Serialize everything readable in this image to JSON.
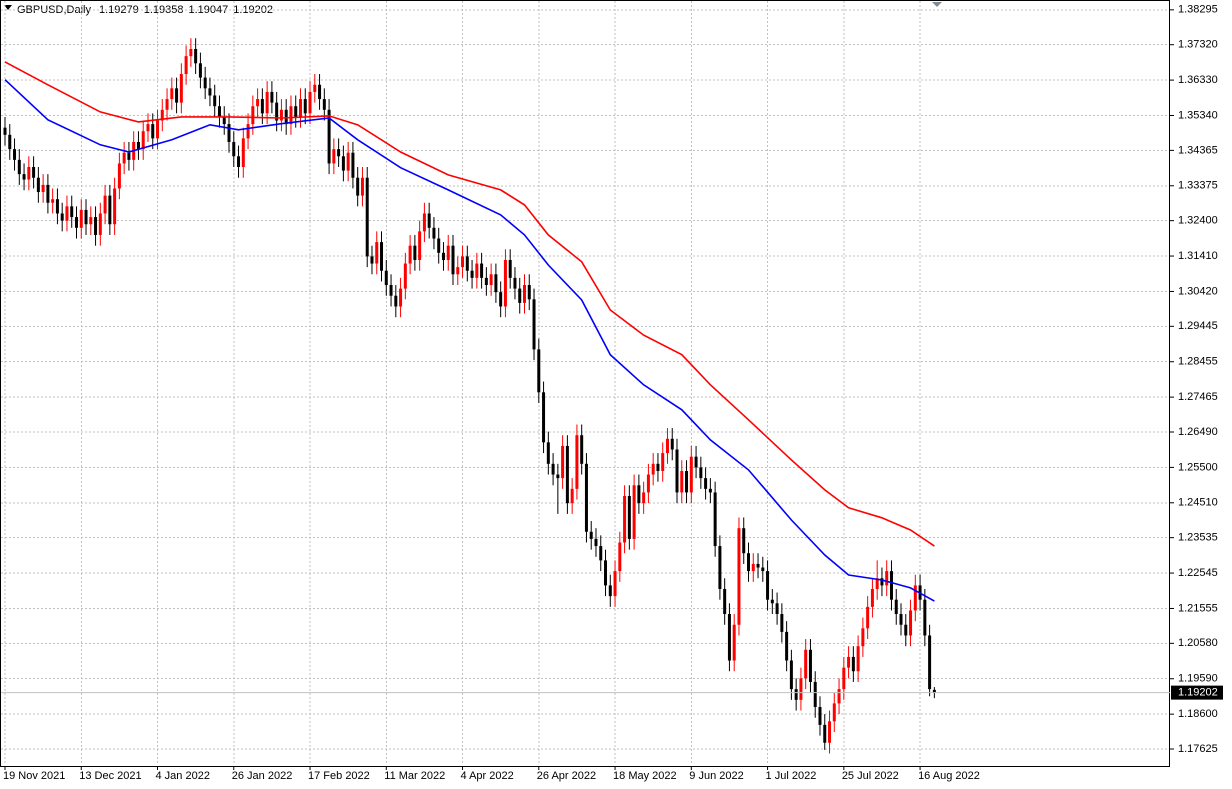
{
  "chart_data": {
    "type": "candlestick",
    "title": "GBPUSD,Daily",
    "up_color": "#ff0000",
    "down_color": "#000000",
    "grid": true,
    "ylim": [
      1.1715,
      1.3857
    ],
    "yticks": [
      1.38295,
      {
        "value": 1.3732,
        "label": "1.37320"
      },
      {
        "value": 1.3633,
        "label": "1.36330"
      },
      {
        "value": 1.3534,
        "label": "1.35340"
      },
      1.34365,
      1.33375,
      {
        "value": 1.324,
        "label": "1.32400"
      },
      {
        "value": 1.3141,
        "label": "1.31410"
      },
      {
        "value": 1.3042,
        "label": "1.30420"
      },
      1.29445,
      1.28455,
      1.27465,
      {
        "value": 1.2649,
        "label": "1.26490"
      },
      {
        "value": 1.255,
        "label": "1.25500"
      },
      {
        "value": 1.2451,
        "label": "1.24510"
      },
      1.23535,
      1.22545,
      1.21555,
      {
        "value": 1.2058,
        "label": "1.20580"
      },
      {
        "value": 1.1959,
        "label": "1.19590"
      },
      {
        "value": 1.186,
        "label": "1.18600"
      },
      1.17625
    ],
    "xticks": [
      {
        "value": 0,
        "label": "19 Nov 2021"
      },
      {
        "value": 16,
        "label": "13 Dec 2021"
      },
      {
        "value": 32,
        "label": "4 Jan 2022"
      },
      {
        "value": 48,
        "label": "26 Jan 2022"
      },
      {
        "value": 64,
        "label": "17 Feb 2022"
      },
      {
        "value": 80,
        "label": "11 Mar 2022"
      },
      {
        "value": 96,
        "label": "4 Apr 2022"
      },
      {
        "value": 112,
        "label": "26 Apr 2022"
      },
      {
        "value": 128,
        "label": "18 May 2022"
      },
      {
        "value": 144,
        "label": "9 Jun 2022"
      },
      {
        "value": 160,
        "label": "1 Jul 2022"
      },
      {
        "value": 176,
        "label": "25 Jul 2022"
      },
      {
        "value": 192,
        "label": "16 Aug 2022"
      }
    ],
    "open": [
      1.35,
      1.348,
      1.344,
      1.341,
      1.337,
      1.3355,
      1.339,
      1.336,
      1.332,
      1.334,
      1.329,
      1.33,
      1.326,
      1.324,
      1.328,
      1.325,
      1.322,
      1.327,
      1.323,
      1.325,
      1.32,
      1.326,
      1.331,
      1.323,
      1.333,
      1.34,
      1.343,
      1.341,
      1.346,
      1.344,
      1.349,
      1.351,
      1.347,
      1.352,
      1.355,
      1.358,
      1.361,
      1.357,
      1.365,
      1.37,
      1.372,
      1.368,
      1.364,
      1.361,
      1.359,
      1.356,
      1.353,
      1.351,
      1.346,
      1.342,
      1.339,
      1.347,
      1.351,
      1.356,
      1.358,
      1.354,
      1.36,
      1.357,
      1.352,
      1.355,
      1.351,
      1.356,
      1.353,
      1.358,
      1.354,
      1.36,
      1.362,
      1.358,
      1.355,
      1.34,
      1.344,
      1.342,
      1.338,
      1.343,
      1.336,
      1.331,
      1.336,
      1.314,
      1.312,
      1.318,
      1.31,
      1.306,
      1.303,
      1.3,
      1.305,
      1.312,
      1.317,
      1.313,
      1.321,
      1.326,
      1.322,
      1.319,
      1.315,
      1.313,
      1.317,
      1.309,
      1.311,
      1.314,
      1.31,
      1.308,
      1.312,
      1.308,
      1.306,
      1.309,
      1.304,
      1.3,
      1.313,
      1.308,
      1.305,
      1.301,
      1.306,
      1.302,
      1.288,
      1.276,
      1.262,
      1.256,
      1.253,
      1.252,
      1.261,
      1.245,
      1.249,
      1.264,
      1.256,
      1.237,
      1.235,
      1.233,
      1.229,
      1.222,
      1.219,
      1.226,
      1.234,
      1.247,
      1.235,
      1.25,
      1.245,
      1.248,
      1.253,
      1.256,
      1.254,
      1.259,
      1.263,
      1.26,
      1.248,
      1.254,
      1.248,
      1.258,
      1.255,
      1.252,
      1.249,
      1.248,
      1.233,
      1.221,
      1.214,
      1.201,
      1.211,
      1.238,
      1.231,
      1.226,
      1.228,
      1.227,
      1.226,
      1.218,
      1.217,
      1.214,
      1.209,
      1.201,
      1.193,
      1.19,
      1.196,
      1.204,
      1.195,
      1.188,
      1.183,
      1.178,
      1.184,
      1.189,
      1.193,
      1.199,
      1.202,
      1.198,
      1.205,
      1.21,
      1.216,
      1.221,
      1.224,
      1.222,
      1.226,
      1.218,
      1.214,
      1.211,
      1.208,
      1.215,
      1.222,
      1.218,
      1.208,
      1.19279
    ],
    "high": [
      1.353,
      1.351,
      1.347,
      1.344,
      1.34,
      1.342,
      1.342,
      1.339,
      1.337,
      1.337,
      1.333,
      1.333,
      1.329,
      1.331,
      1.331,
      1.328,
      1.33,
      1.33,
      1.328,
      1.328,
      1.329,
      1.334,
      1.334,
      1.336,
      1.343,
      1.346,
      1.346,
      1.349,
      1.349,
      1.352,
      1.354,
      1.354,
      1.355,
      1.358,
      1.361,
      1.364,
      1.364,
      1.368,
      1.373,
      1.375,
      1.375,
      1.371,
      1.367,
      1.364,
      1.362,
      1.359,
      1.356,
      1.354,
      1.349,
      1.345,
      1.35,
      1.354,
      1.359,
      1.361,
      1.361,
      1.363,
      1.363,
      1.36,
      1.358,
      1.358,
      1.359,
      1.359,
      1.361,
      1.361,
      1.363,
      1.365,
      1.365,
      1.361,
      1.358,
      1.347,
      1.347,
      1.345,
      1.346,
      1.346,
      1.339,
      1.339,
      1.339,
      1.317,
      1.321,
      1.321,
      1.313,
      1.309,
      1.306,
      1.308,
      1.315,
      1.32,
      1.32,
      1.324,
      1.329,
      1.329,
      1.325,
      1.322,
      1.318,
      1.32,
      1.32,
      1.314,
      1.317,
      1.317,
      1.313,
      1.315,
      1.315,
      1.311,
      1.312,
      1.312,
      1.307,
      1.316,
      1.316,
      1.311,
      1.308,
      1.309,
      1.309,
      1.305,
      1.291,
      1.279,
      1.265,
      1.259,
      1.256,
      1.264,
      1.264,
      1.252,
      1.267,
      1.267,
      1.259,
      1.24,
      1.238,
      1.236,
      1.232,
      1.225,
      1.229,
      1.237,
      1.25,
      1.25,
      1.253,
      1.253,
      1.251,
      1.256,
      1.259,
      1.259,
      1.262,
      1.266,
      1.266,
      1.263,
      1.257,
      1.257,
      1.261,
      1.261,
      1.258,
      1.255,
      1.252,
      1.251,
      1.236,
      1.224,
      1.217,
      1.214,
      1.241,
      1.241,
      1.234,
      1.231,
      1.231,
      1.23,
      1.229,
      1.221,
      1.22,
      1.217,
      1.212,
      1.204,
      1.196,
      1.199,
      1.207,
      1.207,
      1.198,
      1.191,
      1.186,
      1.187,
      1.192,
      1.196,
      1.202,
      1.205,
      1.205,
      1.208,
      1.213,
      1.219,
      1.224,
      1.229,
      1.227,
      1.229,
      1.229,
      1.221,
      1.217,
      1.214,
      1.218,
      1.225,
      1.225,
      1.221,
      1.211,
      1.19358
    ],
    "low": [
      1.345,
      1.341,
      1.338,
      1.334,
      1.3325,
      1.3325,
      1.333,
      1.329,
      1.329,
      1.326,
      1.326,
      1.323,
      1.321,
      1.321,
      1.322,
      1.319,
      1.319,
      1.32,
      1.32,
      1.317,
      1.317,
      1.323,
      1.32,
      1.32,
      1.33,
      1.337,
      1.338,
      1.338,
      1.341,
      1.341,
      1.346,
      1.344,
      1.344,
      1.349,
      1.352,
      1.355,
      1.354,
      1.354,
      1.362,
      1.367,
      1.365,
      1.361,
      1.358,
      1.356,
      1.353,
      1.35,
      1.348,
      1.343,
      1.339,
      1.336,
      1.336,
      1.344,
      1.348,
      1.353,
      1.351,
      1.351,
      1.354,
      1.349,
      1.349,
      1.348,
      1.348,
      1.35,
      1.35,
      1.351,
      1.351,
      1.357,
      1.355,
      1.352,
      1.337,
      1.337,
      1.339,
      1.335,
      1.335,
      1.333,
      1.328,
      1.328,
      1.311,
      1.309,
      1.309,
      1.307,
      1.303,
      1.3,
      1.297,
      1.297,
      1.302,
      1.309,
      1.31,
      1.31,
      1.318,
      1.319,
      1.316,
      1.312,
      1.31,
      1.31,
      1.306,
      1.306,
      1.308,
      1.307,
      1.305,
      1.305,
      1.305,
      1.303,
      1.303,
      1.301,
      1.297,
      1.297,
      1.305,
      1.302,
      1.298,
      1.298,
      1.299,
      1.285,
      1.273,
      1.259,
      1.253,
      1.25,
      1.242,
      1.249,
      1.242,
      1.242,
      1.246,
      1.253,
      1.234,
      1.232,
      1.23,
      1.226,
      1.219,
      1.216,
      1.216,
      1.223,
      1.231,
      1.232,
      1.232,
      1.242,
      1.242,
      1.245,
      1.25,
      1.251,
      1.251,
      1.256,
      1.257,
      1.245,
      1.245,
      1.245,
      1.245,
      1.252,
      1.249,
      1.246,
      1.245,
      1.23,
      1.218,
      1.211,
      1.198,
      1.198,
      1.208,
      1.228,
      1.223,
      1.223,
      1.224,
      1.223,
      1.215,
      1.214,
      1.211,
      1.206,
      1.198,
      1.19,
      1.187,
      1.187,
      1.193,
      1.192,
      1.185,
      1.18,
      1.176,
      1.175,
      1.181,
      1.186,
      1.19,
      1.196,
      1.195,
      1.195,
      1.202,
      1.207,
      1.213,
      1.218,
      1.219,
      1.219,
      1.215,
      1.211,
      1.208,
      1.205,
      1.205,
      1.212,
      1.215,
      1.205,
      1.191,
      1.19047
    ],
    "close": [
      1.348,
      1.344,
      1.341,
      1.337,
      1.3355,
      1.339,
      1.336,
      1.332,
      1.334,
      1.329,
      1.33,
      1.326,
      1.324,
      1.328,
      1.325,
      1.322,
      1.327,
      1.323,
      1.325,
      1.32,
      1.326,
      1.331,
      1.323,
      1.333,
      1.34,
      1.343,
      1.341,
      1.346,
      1.344,
      1.349,
      1.351,
      1.347,
      1.352,
      1.355,
      1.358,
      1.361,
      1.357,
      1.365,
      1.37,
      1.372,
      1.368,
      1.364,
      1.361,
      1.359,
      1.356,
      1.353,
      1.351,
      1.346,
      1.342,
      1.339,
      1.347,
      1.351,
      1.356,
      1.358,
      1.354,
      1.36,
      1.357,
      1.352,
      1.355,
      1.351,
      1.356,
      1.353,
      1.358,
      1.354,
      1.36,
      1.362,
      1.358,
      1.355,
      1.34,
      1.344,
      1.342,
      1.338,
      1.343,
      1.336,
      1.331,
      1.336,
      1.314,
      1.312,
      1.318,
      1.31,
      1.306,
      1.303,
      1.3,
      1.305,
      1.312,
      1.317,
      1.313,
      1.321,
      1.326,
      1.322,
      1.319,
      1.315,
      1.313,
      1.317,
      1.309,
      1.311,
      1.314,
      1.31,
      1.308,
      1.312,
      1.308,
      1.306,
      1.309,
      1.304,
      1.3,
      1.313,
      1.308,
      1.305,
      1.301,
      1.306,
      1.302,
      1.288,
      1.276,
      1.262,
      1.256,
      1.253,
      1.252,
      1.261,
      1.245,
      1.249,
      1.264,
      1.256,
      1.237,
      1.235,
      1.233,
      1.229,
      1.222,
      1.219,
      1.226,
      1.234,
      1.247,
      1.235,
      1.25,
      1.245,
      1.248,
      1.253,
      1.256,
      1.254,
      1.259,
      1.263,
      1.26,
      1.248,
      1.254,
      1.248,
      1.258,
      1.255,
      1.252,
      1.249,
      1.248,
      1.233,
      1.221,
      1.214,
      1.201,
      1.211,
      1.238,
      1.231,
      1.226,
      1.228,
      1.227,
      1.226,
      1.218,
      1.217,
      1.214,
      1.209,
      1.201,
      1.193,
      1.19,
      1.196,
      1.204,
      1.195,
      1.188,
      1.183,
      1.178,
      1.184,
      1.189,
      1.193,
      1.199,
      1.202,
      1.198,
      1.205,
      1.21,
      1.216,
      1.221,
      1.224,
      1.222,
      1.226,
      1.218,
      1.214,
      1.211,
      1.208,
      1.215,
      1.222,
      1.218,
      1.208,
      1.193,
      1.19202
    ],
    "lines": [
      {
        "color": "#ff0000",
        "x": [
          0,
          9,
          20,
          28,
          37,
          47,
          58,
          68,
          74,
          83,
          93,
          104,
          109,
          114,
          121,
          127,
          134,
          142,
          148,
          156,
          165,
          172,
          177,
          184,
          190,
          195
        ],
        "values": [
          1.3684,
          1.362,
          1.3544,
          1.3516,
          1.353,
          1.353,
          1.3527,
          1.3533,
          1.3508,
          1.3432,
          1.3368,
          1.3326,
          1.3284,
          1.32,
          1.3125,
          1.299,
          1.292,
          1.2865,
          1.2781,
          1.2683,
          1.2571,
          1.2487,
          1.2437,
          1.2409,
          1.2375,
          1.233
        ]
      },
      {
        "color": "#0000ff",
        "x": [
          0,
          9,
          20,
          26,
          35,
          43,
          49,
          58,
          68,
          74,
          83,
          93,
          104,
          109,
          114,
          121,
          127,
          134,
          142,
          148,
          156,
          165,
          172,
          177,
          184,
          190,
          195
        ],
        "values": [
          1.3634,
          1.3522,
          1.3452,
          1.3432,
          1.3466,
          1.3508,
          1.3494,
          1.3511,
          1.3527,
          1.3466,
          1.3388,
          1.3326,
          1.3256,
          1.32,
          1.3116,
          1.3018,
          1.2865,
          1.2781,
          1.2711,
          1.2627,
          1.2543,
          1.2403,
          1.2305,
          1.2249,
          1.2235,
          1.2213,
          1.2176
        ]
      }
    ]
  }
}
